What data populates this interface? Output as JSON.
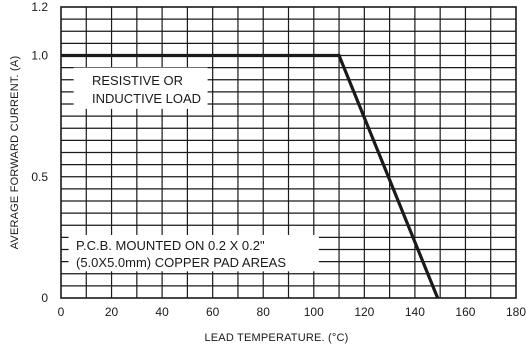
{
  "chart_data": {
    "type": "line",
    "title": "",
    "xlabel": "LEAD  TEMPERATURE. (°C)",
    "ylabel": "AVERAGE FORWARD CURRENT. (A)",
    "xlim": [
      0,
      180
    ],
    "ylim": [
      0,
      1.2
    ],
    "x_ticks": [
      "0",
      "20",
      "40",
      "60",
      "80",
      "100",
      "120",
      "140",
      "160",
      "180"
    ],
    "y_ticks": [
      {
        "value": 0,
        "label": "0"
      },
      {
        "value": 0.5,
        "label": "0.5"
      },
      {
        "value": 1.0,
        "label": "1.0"
      },
      {
        "value": 1.2,
        "label": "1.2"
      }
    ],
    "grid": true,
    "series": [
      {
        "x": [
          0,
          110,
          149
        ],
        "y": [
          1.0,
          1.0,
          0
        ]
      }
    ],
    "annotations": [
      {
        "lines": [
          "RESISTIVE OR",
          "INDUCTIVE LOAD"
        ]
      },
      {
        "lines": [
          "P.C.B. MOUNTED ON 0.2 X 0.2\"",
          "(5.0X5.0mm) COPPER PAD AREAS"
        ]
      }
    ]
  }
}
